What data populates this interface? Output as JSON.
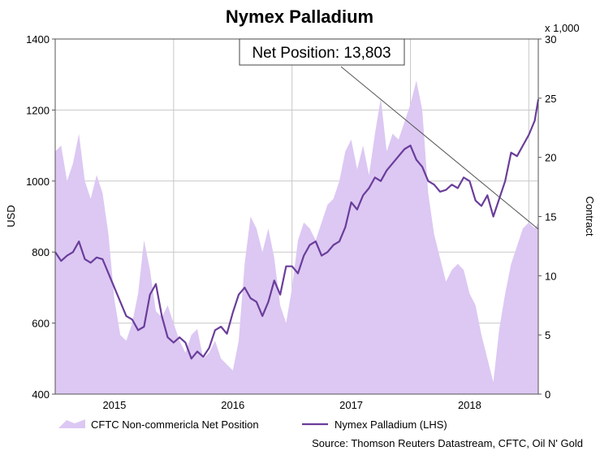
{
  "chart_data": {
    "type": "line",
    "title": "Nymex Palladium",
    "ylabel_left": "USD",
    "ylabel_right": "Contract",
    "right_axis_multiplier": "x 1,000",
    "ylim_left": [
      400,
      1400
    ],
    "ylim_right": [
      0,
      30
    ],
    "yticks_left": [
      "400",
      "600",
      "800",
      "1000",
      "1200",
      "1400"
    ],
    "yticks_right": [
      "0",
      "5",
      "10",
      "15",
      "20",
      "25",
      "30"
    ],
    "x_tick_labels": [
      "2015",
      "2016",
      "2017",
      "2018"
    ],
    "x_tick_positions": [
      2015.0,
      2016.0,
      2017.0,
      2018.0
    ],
    "x_range": [
      2014.5,
      2018.58
    ],
    "grid": true,
    "legend_position": "bottom",
    "annotation": "Net Position: 13,803",
    "source": "Source: Thomson Reuters Datastream, CFTC, Oil N' Gold",
    "colors": {
      "area": "#dcc8f3",
      "line": "#6a3d9a",
      "trend": "#555555"
    },
    "series": [
      {
        "name": "CFTC Non-commericla Net Position",
        "kind": "area",
        "axis": "right",
        "x": [
          2014.5,
          2014.55,
          2014.6,
          2014.65,
          2014.7,
          2014.75,
          2014.8,
          2014.85,
          2014.9,
          2014.95,
          2015.0,
          2015.05,
          2015.1,
          2015.15,
          2015.2,
          2015.25,
          2015.3,
          2015.35,
          2015.4,
          2015.45,
          2015.5,
          2015.55,
          2015.6,
          2015.65,
          2015.7,
          2015.75,
          2015.8,
          2015.85,
          2015.9,
          2015.95,
          2016.0,
          2016.05,
          2016.1,
          2016.15,
          2016.2,
          2016.25,
          2016.3,
          2016.35,
          2016.4,
          2016.45,
          2016.5,
          2016.55,
          2016.6,
          2016.65,
          2016.7,
          2016.75,
          2016.8,
          2016.85,
          2016.9,
          2016.95,
          2017.0,
          2017.05,
          2017.1,
          2017.15,
          2017.2,
          2017.25,
          2017.3,
          2017.35,
          2017.4,
          2017.45,
          2017.5,
          2017.55,
          2017.6,
          2017.65,
          2017.7,
          2017.75,
          2017.8,
          2017.85,
          2017.9,
          2017.95,
          2018.0,
          2018.05,
          2018.1,
          2018.15,
          2018.2,
          2018.25,
          2018.3,
          2018.35,
          2018.4,
          2018.45,
          2018.5,
          2018.55,
          2018.58
        ],
        "values": [
          20.5,
          21.0,
          18.0,
          19.5,
          22.0,
          18.0,
          16.5,
          18.5,
          17.0,
          13.5,
          8.0,
          5.0,
          4.5,
          6.0,
          8.5,
          13.0,
          10.5,
          7.0,
          6.5,
          7.5,
          6.0,
          4.5,
          3.5,
          5.0,
          5.5,
          3.0,
          3.5,
          4.5,
          3.0,
          2.5,
          2.0,
          4.5,
          11.0,
          15.0,
          14.0,
          12.0,
          14.0,
          11.5,
          7.5,
          6.0,
          9.0,
          13.0,
          14.5,
          14.0,
          13.0,
          14.5,
          16.0,
          16.5,
          18.0,
          20.5,
          21.5,
          19.0,
          21.0,
          18.5,
          22.0,
          25.0,
          20.5,
          22.0,
          21.5,
          23.0,
          24.5,
          26.5,
          24.0,
          17.0,
          13.5,
          11.5,
          9.5,
          10.5,
          11.0,
          10.5,
          8.5,
          7.5,
          5.0,
          3.0,
          1.0,
          5.5,
          8.5,
          11.0,
          12.5,
          14.0,
          14.5,
          14.0,
          14.5
        ]
      },
      {
        "name": "Nymex Palladium (LHS)",
        "kind": "line",
        "axis": "left",
        "x": [
          2014.5,
          2014.55,
          2014.6,
          2014.65,
          2014.7,
          2014.75,
          2014.8,
          2014.85,
          2014.9,
          2014.95,
          2015.0,
          2015.05,
          2015.1,
          2015.15,
          2015.2,
          2015.25,
          2015.3,
          2015.35,
          2015.4,
          2015.45,
          2015.5,
          2015.55,
          2015.6,
          2015.65,
          2015.7,
          2015.75,
          2015.8,
          2015.85,
          2015.9,
          2015.95,
          2016.0,
          2016.05,
          2016.1,
          2016.15,
          2016.2,
          2016.25,
          2016.3,
          2016.35,
          2016.4,
          2016.45,
          2016.5,
          2016.55,
          2016.6,
          2016.65,
          2016.7,
          2016.75,
          2016.8,
          2016.85,
          2016.9,
          2016.95,
          2017.0,
          2017.05,
          2017.1,
          2017.15,
          2017.2,
          2017.25,
          2017.3,
          2017.35,
          2017.4,
          2017.45,
          2017.5,
          2017.55,
          2017.6,
          2017.65,
          2017.7,
          2017.75,
          2017.8,
          2017.85,
          2017.9,
          2017.95,
          2018.0,
          2018.05,
          2018.1,
          2018.15,
          2018.2,
          2018.25,
          2018.3,
          2018.35,
          2018.4,
          2018.45,
          2018.5,
          2018.55,
          2018.58
        ],
        "values": [
          800,
          775,
          790,
          800,
          830,
          780,
          770,
          785,
          780,
          740,
          700,
          660,
          620,
          610,
          580,
          590,
          680,
          710,
          620,
          560,
          545,
          560,
          545,
          500,
          520,
          505,
          530,
          580,
          590,
          570,
          630,
          680,
          700,
          670,
          660,
          620,
          660,
          720,
          680,
          760,
          760,
          740,
          790,
          820,
          830,
          790,
          800,
          820,
          830,
          870,
          940,
          920,
          960,
          980,
          1010,
          1000,
          1030,
          1050,
          1070,
          1090,
          1100,
          1060,
          1040,
          1000,
          990,
          970,
          975,
          990,
          980,
          1010,
          1000,
          945,
          930,
          960,
          900,
          950,
          1000,
          1080,
          1070,
          1100,
          1130,
          1170,
          1230
        ]
      }
    ]
  }
}
